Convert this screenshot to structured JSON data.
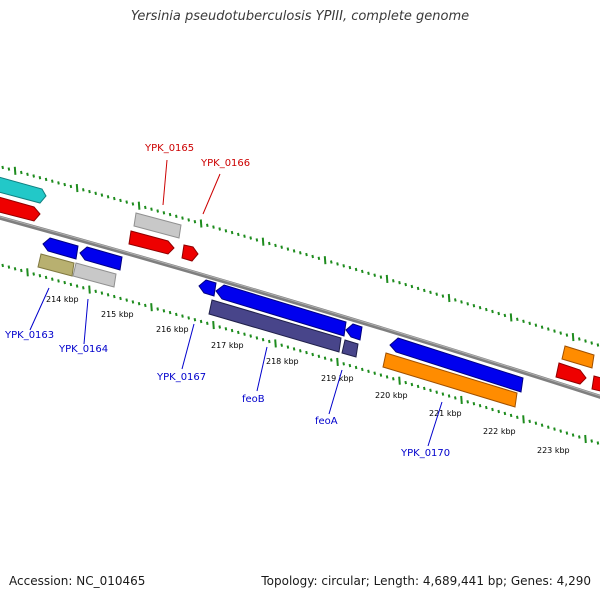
{
  "title": "Yersinia pseudotuberculosis YPIII, complete genome",
  "footer": {
    "accession": "Accession: NC_010465",
    "summary": "Topology: circular; Length: 4,689,441 bp; Genes: 4,290"
  },
  "colors": {
    "backbone": "#7f7f7f",
    "tick": "#1e8c1e",
    "forward_label": "#cc0000",
    "reverse_label": "#0000cc",
    "cds_blue": "#0000ee",
    "cds_red": "#ee0000",
    "cds_grey": "#c0c0c0",
    "cds_cyan": "#22c8c8",
    "cds_olive": "#b8b070",
    "cds_purple": "#48458a",
    "cds_orange": "#ff8c00"
  },
  "scale_labels": [
    "214 kbp",
    "215 kbp",
    "216 kbp",
    "217 kbp",
    "218 kbp",
    "219 kbp",
    "220 kbp",
    "221 kbp",
    "222 kbp",
    "223 kbp"
  ],
  "gene_labels": {
    "forward": [
      "YPK_0165",
      "YPK_0166"
    ],
    "reverse": [
      "YPK_0163",
      "YPK_0164",
      "YPK_0167",
      "feoB",
      "feoA",
      "YPK_0170"
    ]
  }
}
